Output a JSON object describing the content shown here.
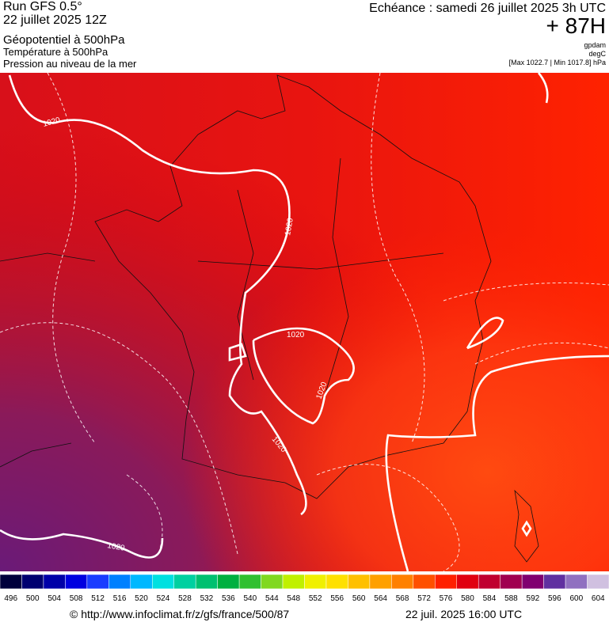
{
  "header": {
    "run": "Run GFS 0.5°",
    "date": "22 juillet 2025 12Z",
    "title": "Géopotentiel à 500hPa",
    "subtitle1": "Température à 500hPa",
    "subtitle2": "Pression au niveau de la mer",
    "forecast": "Echéance : samedi 26 juillet 2025 3h UTC",
    "lead": "+ 87H",
    "unit1": "gpdam",
    "unit2": "degC",
    "range": "[Max 1022.7 | Min 1017.8] hPa"
  },
  "map": {
    "contour_labels": [
      "1020",
      "1020",
      "1020",
      "1020",
      "1020",
      "1020"
    ]
  },
  "colorbar": {
    "ticks": [
      496,
      500,
      504,
      508,
      512,
      516,
      520,
      524,
      528,
      532,
      536,
      540,
      544,
      548,
      552,
      556,
      560,
      564,
      568,
      572,
      576,
      580,
      584,
      588,
      592,
      596,
      600,
      604
    ],
    "colors": [
      "#00003c",
      "#000070",
      "#0000a8",
      "#0000e0",
      "#1a3cff",
      "#0080ff",
      "#00b8ff",
      "#00e0e0",
      "#00d0a0",
      "#00c070",
      "#00b040",
      "#30c030",
      "#80d820",
      "#c0f000",
      "#f0f000",
      "#ffe000",
      "#ffc000",
      "#ffa000",
      "#ff8000",
      "#ff5000",
      "#ff2000",
      "#e00010",
      "#c00030",
      "#a00050",
      "#800070",
      "#6030a0",
      "#9070c0",
      "#d0c0e0"
    ]
  },
  "footer": {
    "url": "© http://www.infoclimat.fr/z/gfs/france/500/87",
    "time": "22 juil. 2025 16:00 UTC"
  }
}
